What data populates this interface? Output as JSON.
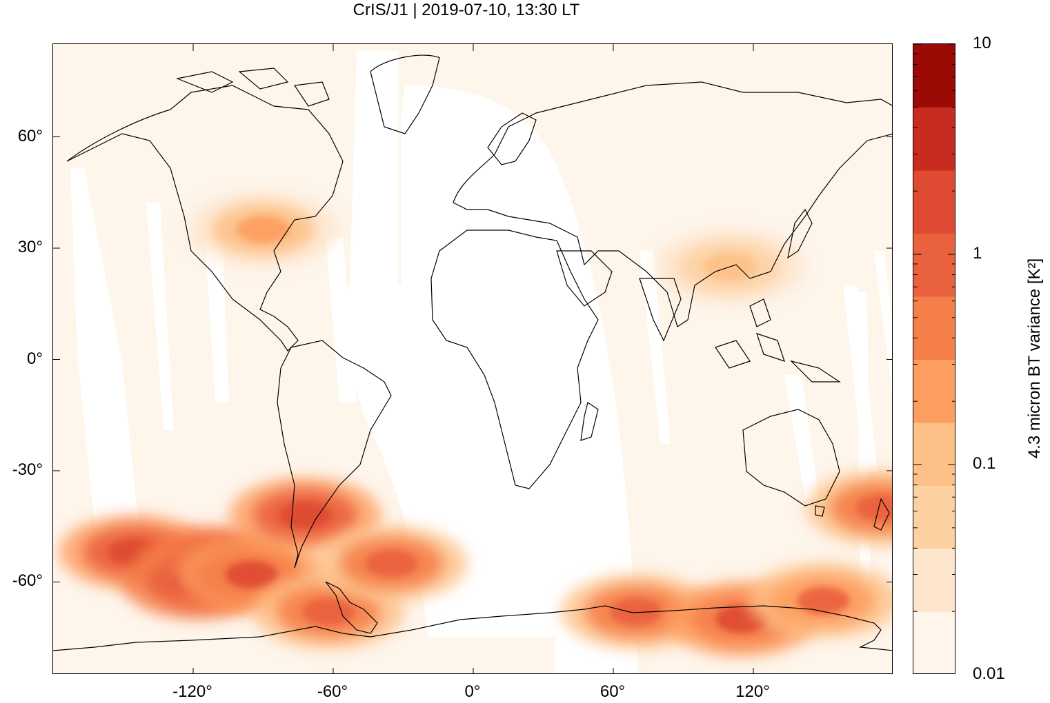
{
  "title": "CrIS/J1 | 2019-07-10, 13:30 LT",
  "map": {
    "projection": "equirectangular",
    "lon_range": [
      -180,
      180
    ],
    "lat_range": [
      -85,
      85
    ],
    "lat_ticks": [
      {
        "value": 60,
        "label": "60°"
      },
      {
        "value": 30,
        "label": "30°"
      },
      {
        "value": 0,
        "label": "0°"
      },
      {
        "value": -30,
        "label": "-30°"
      },
      {
        "value": -60,
        "label": "-60°"
      }
    ],
    "lon_ticks": [
      {
        "value": -120,
        "label": "-120°"
      },
      {
        "value": -60,
        "label": "-60°"
      },
      {
        "value": 0,
        "label": "0°"
      },
      {
        "value": 60,
        "label": "60°"
      },
      {
        "value": 120,
        "label": "120°"
      }
    ],
    "background_color": "#fef5eb",
    "no_data_color": "#ffffff",
    "coastline_color": "#000000"
  },
  "colorbar": {
    "title": "4.3 micron BT variance [K²]",
    "scale": "log",
    "range": [
      0.01,
      10
    ],
    "labels": [
      {
        "value": 10,
        "label": "10"
      },
      {
        "value": 1,
        "label": "1"
      },
      {
        "value": 0.1,
        "label": "0.1"
      },
      {
        "value": 0.01,
        "label": "0.01"
      }
    ],
    "colors": [
      "#fff5eb",
      "#fee6ce",
      "#fdd0a2",
      "#fdc086",
      "#fd9d5f",
      "#f57f4a",
      "#ea613d",
      "#de4a32",
      "#c82b20",
      "#9c0a06"
    ]
  },
  "chart_data": {
    "type": "heatmap",
    "title": "CrIS/J1 | 2019-07-10, 13:30 LT",
    "xlabel": "",
    "ylabel": "",
    "colorbar_label": "4.3 micron BT variance [K²]",
    "xlim": [
      -180,
      180
    ],
    "ylim": [
      -85,
      85
    ],
    "color_scale": "log",
    "clim": [
      0.01,
      10
    ],
    "regions": [
      {
        "lon": -145,
        "lat": -52,
        "value": 2.0
      },
      {
        "lon": -110,
        "lat": -55,
        "value": 3.0
      },
      {
        "lon": -118,
        "lat": -60,
        "value": 2.5
      },
      {
        "lon": -95,
        "lat": -58,
        "value": 1.5
      },
      {
        "lon": -72,
        "lat": -42,
        "value": 2.0
      },
      {
        "lon": -62,
        "lat": -68,
        "value": 1.0
      },
      {
        "lon": -35,
        "lat": -55,
        "value": 1.0
      },
      {
        "lon": 70,
        "lat": -68,
        "value": 1.0
      },
      {
        "lon": 115,
        "lat": -70,
        "value": 1.5
      },
      {
        "lon": 150,
        "lat": -65,
        "value": 0.7
      },
      {
        "lon": -90,
        "lat": 35,
        "value": 0.2
      },
      {
        "lon": 110,
        "lat": 25,
        "value": 0.15
      },
      {
        "lon": 175,
        "lat": -40,
        "value": 1.0
      }
    ]
  }
}
